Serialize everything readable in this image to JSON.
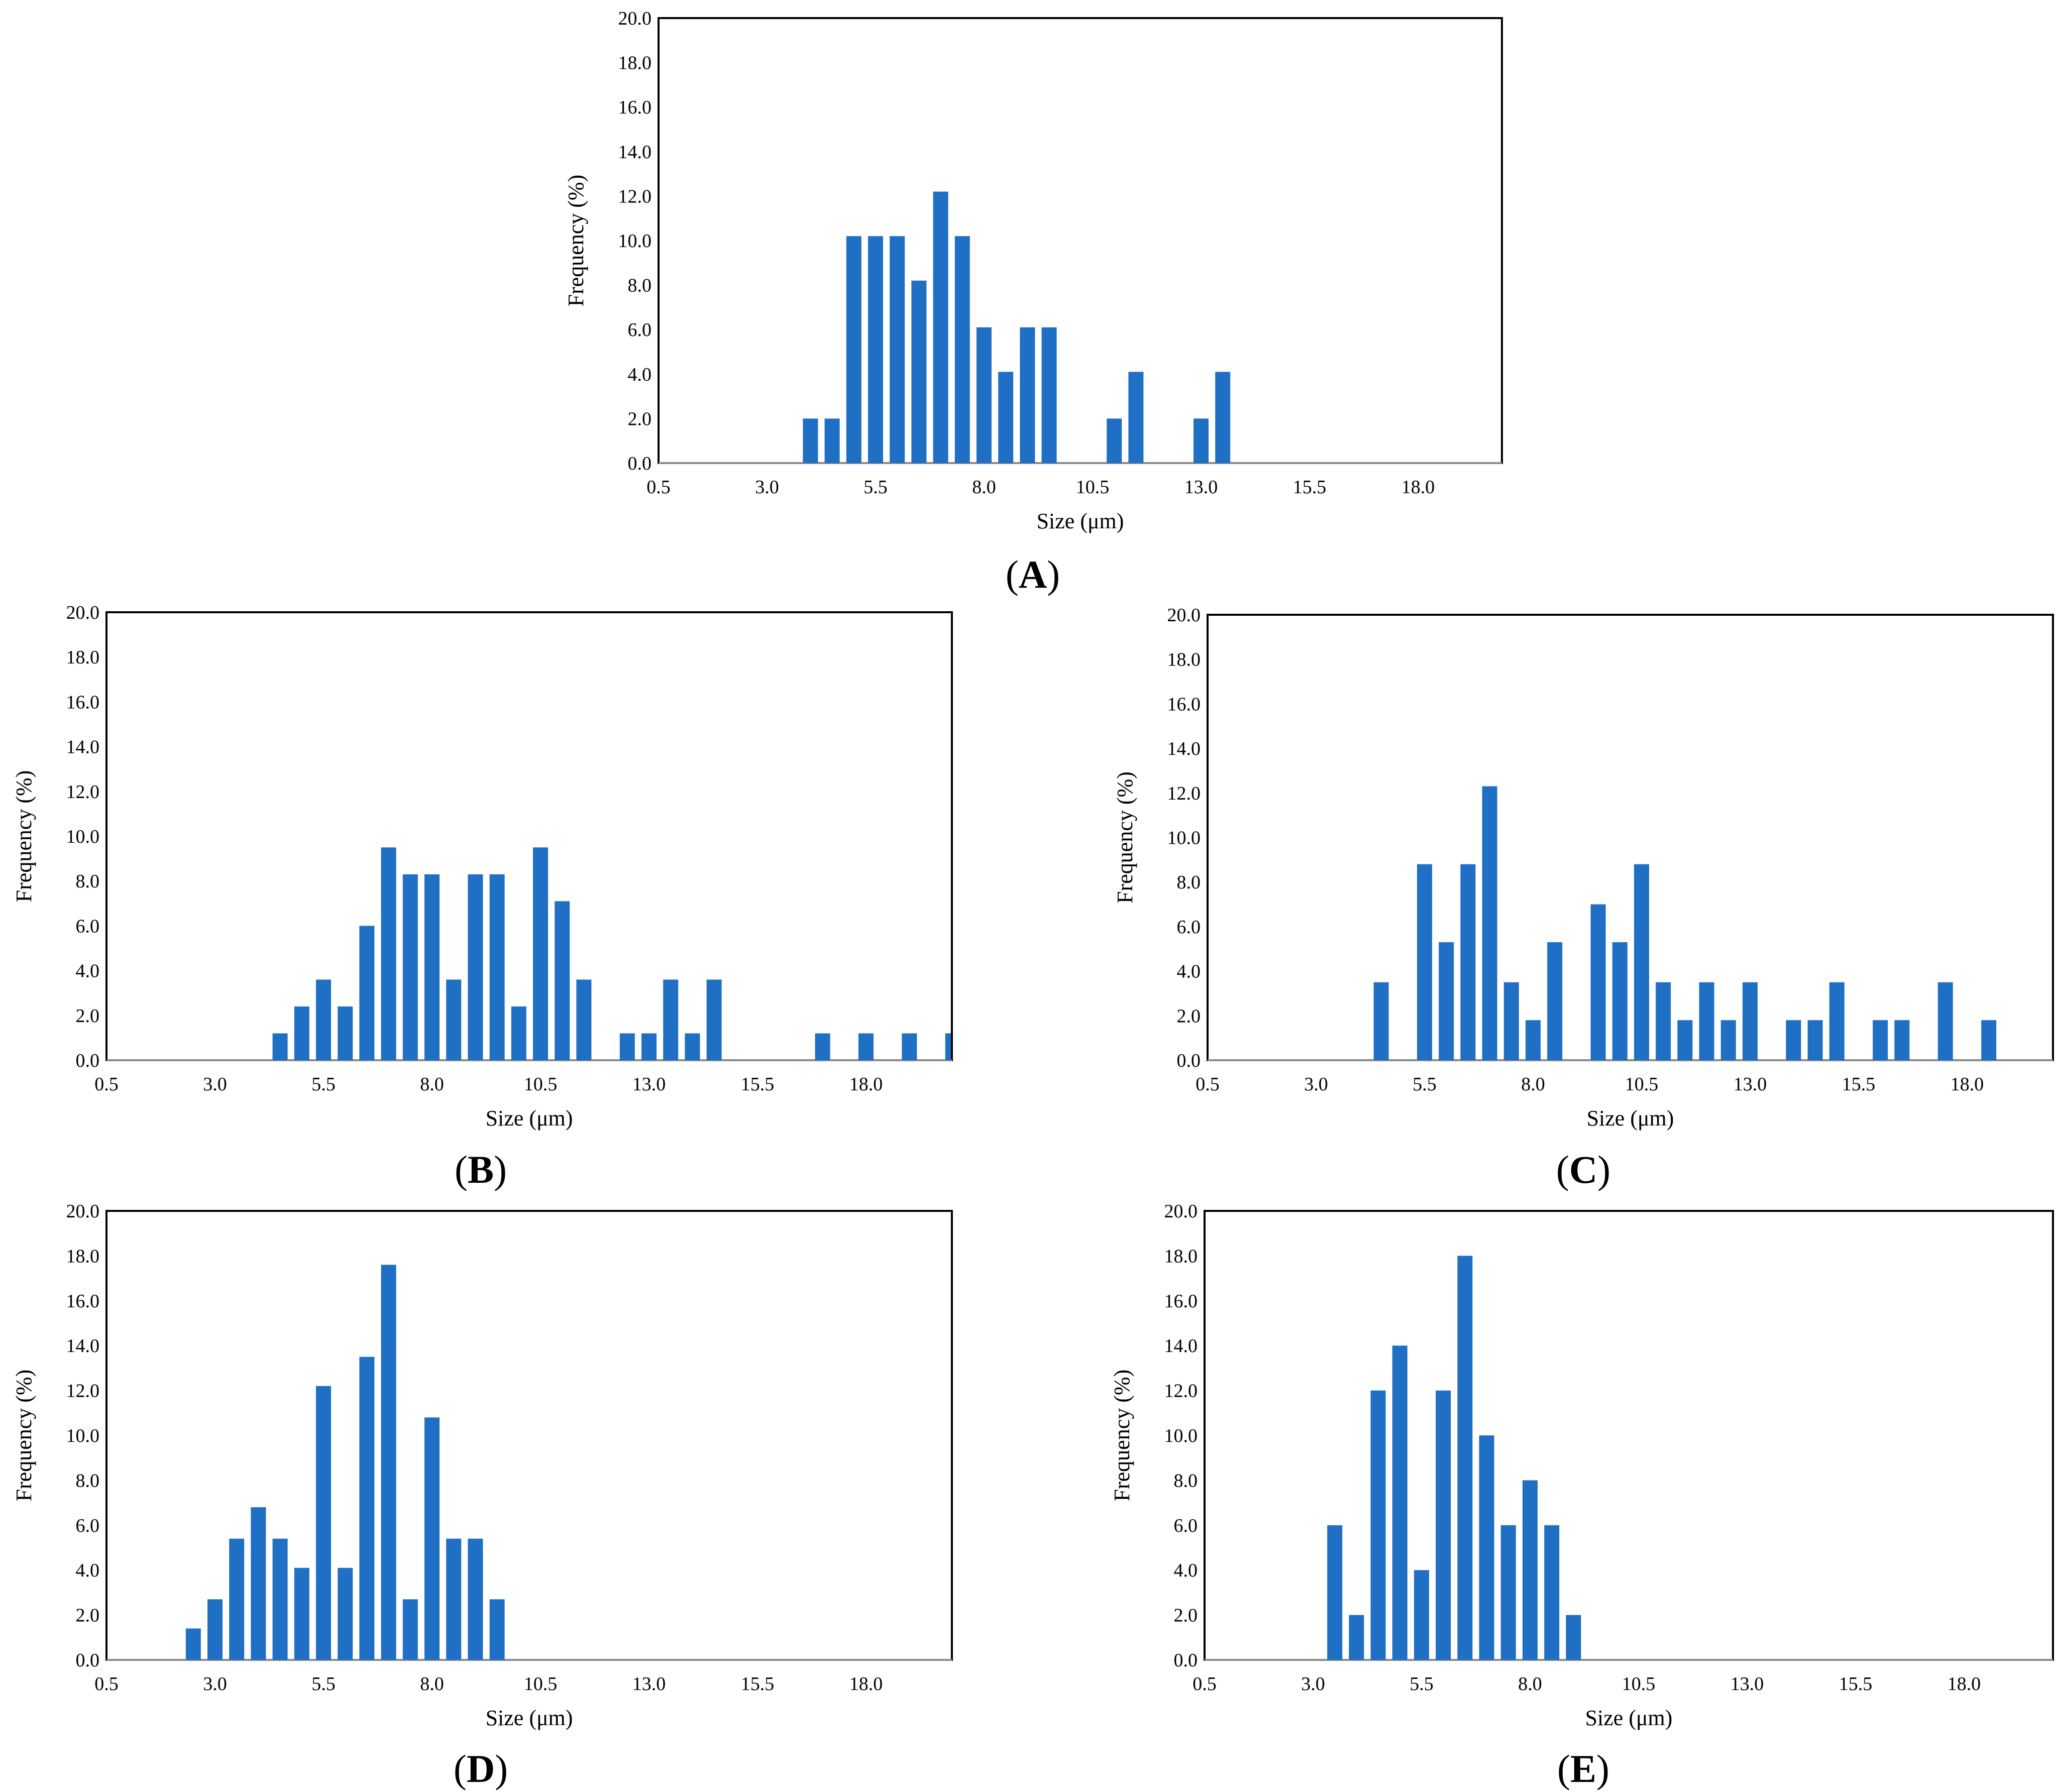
{
  "colors": {
    "bar": "#1f6fc5",
    "frame": "#000000",
    "axis": "#8a8a8a"
  },
  "chart_data": [
    {
      "panel": "A",
      "type": "bar",
      "title": "",
      "xlabel": "Size (μm)",
      "ylabel": "Frequency (%)",
      "ylim": [
        0,
        20
      ],
      "xlim": [
        0.5,
        20.5
      ],
      "x_ticks": [
        "0.5",
        "3.0",
        "5.5",
        "8.0",
        "10.5",
        "13.0",
        "15.5",
        "18.0"
      ],
      "y_ticks": [
        "0.0",
        "2.0",
        "4.0",
        "6.0",
        "8.0",
        "10.0",
        "12.0",
        "14.0",
        "16.0",
        "18.0",
        "20.0"
      ],
      "x": [
        4.0,
        4.5,
        5.0,
        5.5,
        6.0,
        6.5,
        7.0,
        7.5,
        8.0,
        8.5,
        9.0,
        9.5,
        11.0,
        11.5,
        13.0,
        13.5
      ],
      "values": [
        2.0,
        2.0,
        10.2,
        10.2,
        10.2,
        8.2,
        12.2,
        10.2,
        6.1,
        4.1,
        6.1,
        6.1,
        2.0,
        4.1,
        2.0,
        4.1
      ],
      "grid": false
    },
    {
      "panel": "B",
      "type": "bar",
      "title": "",
      "xlabel": "Size (μm)",
      "ylabel": "Frequency (%)",
      "ylim": [
        0,
        20
      ],
      "xlim": [
        0.5,
        20.0
      ],
      "x_ticks": [
        "0.5",
        "3.0",
        "5.5",
        "8.0",
        "10.5",
        "13.0",
        "15.5",
        "18.0"
      ],
      "y_ticks": [
        "0.0",
        "2.0",
        "4.0",
        "6.0",
        "8.0",
        "10.0",
        "12.0",
        "14.0",
        "16.0",
        "18.0",
        "20.0"
      ],
      "x": [
        4.5,
        5.0,
        5.5,
        6.0,
        6.5,
        7.0,
        7.5,
        8.0,
        8.5,
        9.0,
        9.5,
        10.0,
        10.5,
        11.0,
        11.5,
        12.5,
        13.0,
        13.5,
        14.0,
        14.5,
        17.0,
        18.0,
        19.0,
        20.0
      ],
      "values": [
        1.2,
        2.4,
        3.6,
        2.4,
        6.0,
        9.5,
        8.3,
        8.3,
        3.6,
        8.3,
        8.3,
        2.4,
        9.5,
        7.1,
        3.6,
        1.2,
        1.2,
        3.6,
        1.2,
        3.6,
        1.2,
        1.2,
        1.2,
        1.2
      ],
      "grid": false
    },
    {
      "panel": "C",
      "type": "bar",
      "title": "",
      "xlabel": "Size (μm)",
      "ylabel": "Frequency (%)",
      "ylim": [
        0,
        20
      ],
      "xlim": [
        0.5,
        19.5
      ],
      "x_ticks": [
        "0.5",
        "3.0",
        "5.5",
        "8.0",
        "10.5",
        "13.0",
        "15.5",
        "18.0"
      ],
      "y_ticks": [
        "0.0",
        "2.0",
        "4.0",
        "6.0",
        "8.0",
        "10.0",
        "12.0",
        "14.0",
        "16.0",
        "18.0",
        "20.0"
      ],
      "x": [
        4.5,
        5.5,
        6.0,
        6.5,
        7.0,
        7.5,
        8.0,
        8.5,
        9.5,
        10.0,
        10.5,
        11.0,
        11.5,
        12.0,
        12.5,
        13.0,
        14.0,
        14.5,
        15.0,
        16.0,
        16.5,
        17.5,
        18.5
      ],
      "values": [
        3.5,
        8.8,
        5.3,
        8.8,
        12.3,
        3.5,
        1.8,
        5.3,
        7.0,
        5.3,
        8.8,
        3.5,
        1.8,
        3.5,
        1.8,
        3.5,
        1.8,
        1.8,
        3.5,
        1.8,
        1.8,
        3.5,
        1.8
      ],
      "grid": false
    },
    {
      "panel": "D",
      "type": "bar",
      "title": "",
      "xlabel": "Size (μm)",
      "ylabel": "Frequency (%)",
      "ylim": [
        0,
        20
      ],
      "xlim": [
        0.5,
        20.0
      ],
      "x_ticks": [
        "0.5",
        "3.0",
        "5.5",
        "8.0",
        "10.5",
        "13.0",
        "15.5",
        "18.0"
      ],
      "y_ticks": [
        "0.0",
        "2.0",
        "4.0",
        "6.0",
        "8.0",
        "10.0",
        "12.0",
        "14.0",
        "16.0",
        "18.0",
        "20.0"
      ],
      "x": [
        2.5,
        3.0,
        3.5,
        4.0,
        4.5,
        5.0,
        5.5,
        6.0,
        6.5,
        7.0,
        7.5,
        8.0,
        8.5,
        9.0,
        9.5
      ],
      "values": [
        1.4,
        2.7,
        5.4,
        6.8,
        5.4,
        4.1,
        12.2,
        4.1,
        13.5,
        17.6,
        2.7,
        10.8,
        5.4,
        5.4,
        2.7
      ],
      "grid": false
    },
    {
      "panel": "E",
      "type": "bar",
      "title": "",
      "xlabel": "Size (μm)",
      "ylabel": "Frequency (%)",
      "ylim": [
        0,
        20
      ],
      "xlim": [
        0.5,
        19.5
      ],
      "x_ticks": [
        "0.5",
        "3.0",
        "5.5",
        "8.0",
        "10.5",
        "13.0",
        "15.5",
        "18.0"
      ],
      "y_ticks": [
        "0.0",
        "2.0",
        "4.0",
        "6.0",
        "8.0",
        "10.0",
        "12.0",
        "14.0",
        "16.0",
        "18.0",
        "20.0"
      ],
      "x": [
        3.5,
        4.0,
        4.5,
        5.0,
        5.5,
        6.0,
        6.5,
        7.0,
        7.5,
        8.0,
        8.5,
        9.0
      ],
      "values": [
        6.0,
        2.0,
        12.0,
        14.0,
        4.0,
        12.0,
        18.0,
        10.0,
        6.0,
        8.0,
        6.0,
        2.0
      ],
      "grid": false
    }
  ]
}
